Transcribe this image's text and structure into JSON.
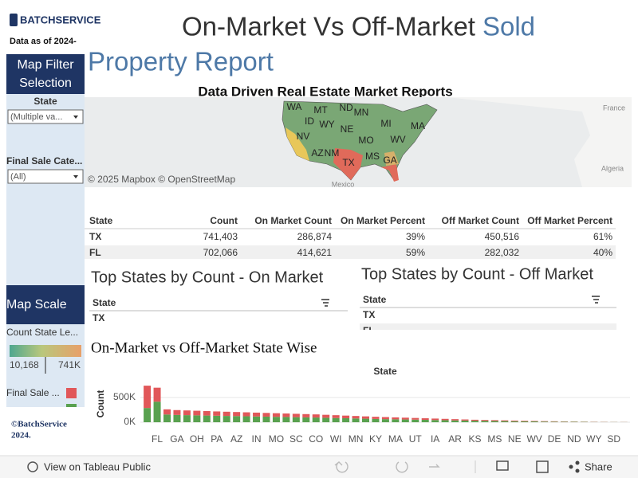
{
  "header": {
    "logo": "BATCHSERVICE",
    "data_as_of": "Data as of 2024-",
    "title_part1": "On-Market Vs Off-Market",
    "title_part2": "Sold",
    "title_part3": "Property Report",
    "subtitle": "Data Driven Real Estate Market Reports"
  },
  "sidebar": {
    "filter_title": "Map Filter Selection",
    "state_label": "State",
    "state_value": "(Multiple va...",
    "category_label": "Final Sale Cate...",
    "category_value": "(All)",
    "scale_title": "Map Scale",
    "scale_label": "Count State Le...",
    "scale_min": "10,168",
    "scale_max": "741K",
    "legend_label": "Final Sale ...",
    "copyright": "©BatchService 2024."
  },
  "map": {
    "state_labels": [
      "WA",
      "MT",
      "ND",
      "MN",
      "ID",
      "WY",
      "NE",
      "MI",
      "MA",
      "NV",
      "MO",
      "WV",
      "AZ",
      "NM",
      "MS",
      "GA",
      "TX"
    ],
    "place_labels": [
      "France",
      "Algeria",
      "Mexico"
    ],
    "attribution": "© 2025 Mapbox  © OpenStreetMap"
  },
  "table": {
    "columns": [
      "State",
      "Count",
      "On Market Count",
      "On Market Percent",
      "Off Market Count",
      "Off Market Percent"
    ],
    "rows": [
      [
        "TX",
        "741,403",
        "286,874",
        "39%",
        "450,516",
        "61%"
      ],
      [
        "FL",
        "702,066",
        "414,621",
        "59%",
        "282,032",
        "40%"
      ]
    ]
  },
  "top_on": {
    "title": "Top States by Count -  On Market",
    "column": "State",
    "rows": [
      "TX"
    ]
  },
  "top_off": {
    "title": "Top States by Count - Off Market",
    "column": "State",
    "rows": [
      "TX",
      "FL"
    ]
  },
  "chart_data": {
    "type": "bar",
    "stacked": true,
    "title": "On-Market vs Off-Market State Wise",
    "x_label": "State",
    "y_label": "Count",
    "categories": [
      null,
      "FL",
      null,
      "GA",
      null,
      "OH",
      null,
      "PA",
      null,
      "AZ",
      null,
      "IN",
      null,
      "MO",
      null,
      "SC",
      null,
      "CO",
      null,
      "WI",
      null,
      "MN",
      null,
      "KY",
      null,
      "MA",
      null,
      "UT",
      null,
      "IA",
      null,
      "AR",
      null,
      "KS",
      null,
      "MS",
      null,
      "NE",
      null,
      "WV",
      null,
      "DE",
      null,
      "ND",
      null,
      "WY",
      null,
      "SD",
      null
    ],
    "series": [
      {
        "color": "#59a14f",
        "values": [
          286874,
          414621,
          156000,
          147000,
          143000,
          139000,
          135000,
          131000,
          127000,
          124000,
          120000,
          116000,
          113000,
          109000,
          106000,
          102000,
          98000,
          95000,
          90000,
          85000,
          80000,
          76000,
          71000,
          66000,
          62000,
          59000,
          55000,
          52000,
          48000,
          44000,
          41000,
          37000,
          34000,
          30000,
          28000,
          25000,
          23000,
          20000,
          18000,
          16000,
          13000,
          11000,
          10000,
          8000,
          7000,
          5000,
          4000,
          3000,
          2000
        ]
      },
      {
        "color": "#e15759",
        "values": [
          450516,
          282032,
          104000,
          98000,
          95000,
          93000,
          90000,
          87000,
          85000,
          82000,
          80000,
          78000,
          75000,
          73000,
          70000,
          68000,
          66000,
          63000,
          60000,
          57000,
          54000,
          50000,
          47000,
          44000,
          42000,
          39000,
          37000,
          34000,
          32000,
          30000,
          27000,
          25000,
          22000,
          20000,
          18000,
          17000,
          15000,
          14000,
          12000,
          10000,
          9000,
          8000,
          6000,
          5000,
          4000,
          4000,
          3000,
          2000,
          2000
        ]
      }
    ],
    "ylim": [
      0,
      900000
    ],
    "yticks": [
      {
        "value": 0,
        "label": "0K"
      },
      {
        "value": 500000,
        "label": "500K"
      }
    ],
    "grid": true
  },
  "toolbar": {
    "view": "View on Tableau Public",
    "share": "Share"
  }
}
